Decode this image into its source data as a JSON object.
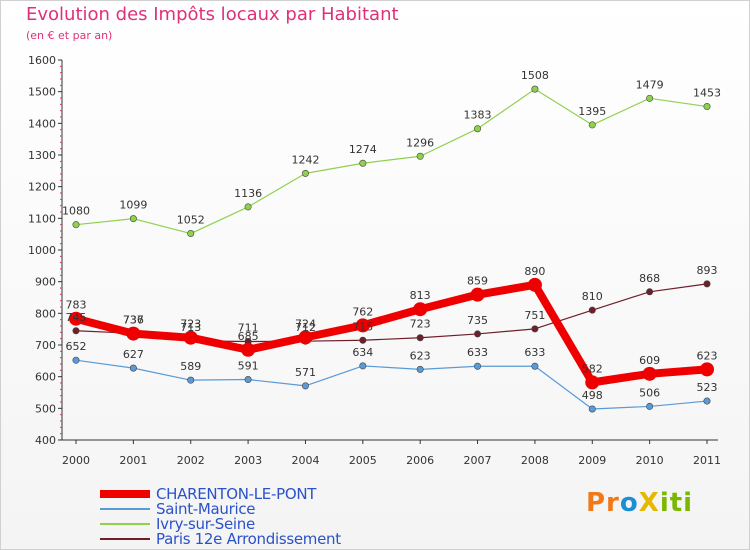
{
  "chart_data": {
    "type": "line",
    "title": "Evolution des Impôts locaux par Habitant",
    "subtitle": "(en € et par an)",
    "x": [
      "2000",
      "2001",
      "2002",
      "2003",
      "2004",
      "2005",
      "2006",
      "2007",
      "2008",
      "2009",
      "2010",
      "2011"
    ],
    "ylim": [
      400,
      1600
    ],
    "yticks": [
      400,
      500,
      600,
      700,
      800,
      900,
      1000,
      1100,
      1200,
      1300,
      1400,
      1500,
      1600
    ],
    "grid": false,
    "legend_position": "bottom-left",
    "series": [
      {
        "name": "CHARENTON-LE-PONT",
        "color": "#ee0000",
        "emphasis": true,
        "values": [
          783,
          736,
          723,
          685,
          724,
          762,
          813,
          859,
          890,
          582,
          609,
          623
        ],
        "labels": [
          "783",
          "736",
          "723",
          "685",
          "724",
          "762",
          "813",
          "859",
          "890",
          "582",
          "609",
          "623"
        ]
      },
      {
        "name": "Saint-Maurice",
        "color": "#5a9ad6",
        "emphasis": false,
        "values": [
          652,
          627,
          589,
          591,
          571,
          634,
          623,
          633,
          633,
          498,
          506,
          523
        ],
        "labels": [
          "652",
          "627",
          "589",
          "591",
          "571",
          "634",
          "623",
          "633",
          "633",
          "498",
          "506",
          "523"
        ]
      },
      {
        "name": "Ivry-sur-Seine",
        "color": "#8fd14f",
        "emphasis": false,
        "values": [
          1080,
          1099,
          1052,
          1136,
          1242,
          1274,
          1296,
          1383,
          1508,
          1395,
          1479,
          1453
        ],
        "labels": [
          "1080",
          "1099",
          "1052",
          "1136",
          "1242",
          "1274",
          "1296",
          "1383",
          "1508",
          "1395",
          "1479",
          "1453"
        ]
      },
      {
        "name": "Paris 12e  Arrondissement",
        "color": "#6e1f2a",
        "emphasis": false,
        "values": [
          745,
          737,
          713,
          711,
          712,
          715,
          723,
          735,
          751,
          810,
          868,
          893
        ],
        "labels": [
          "745",
          "737",
          "713",
          "711",
          "712",
          "715",
          "723",
          "735",
          "751",
          "810",
          "868",
          "893"
        ]
      }
    ]
  },
  "logo": {
    "p1": "Pr",
    "p2": "o",
    "p3": "X",
    "p4": "iti"
  }
}
